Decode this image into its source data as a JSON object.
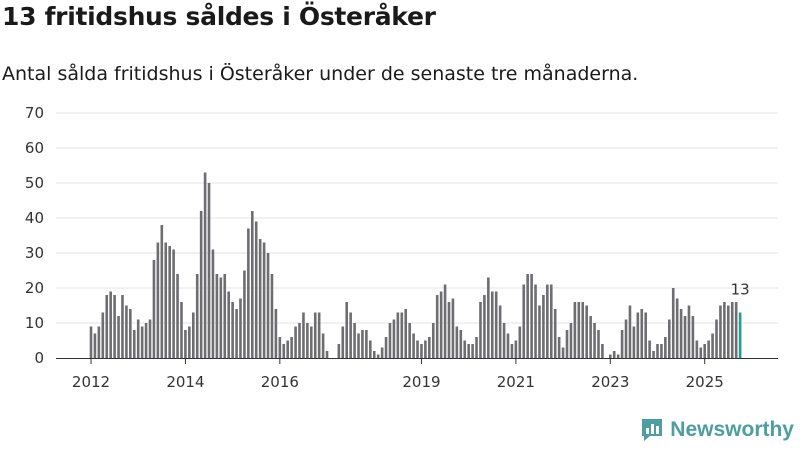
{
  "header": {
    "title": "13 fritidshus såldes i Österåker",
    "subtitle": "Antal sålda fritidshus i Österåker under de senaste tre månaderna."
  },
  "brand": {
    "name": "Newsworthy",
    "color": "#4e9da0"
  },
  "colors": {
    "bar": "#6d6d72",
    "highlight": "#1f9c94",
    "grid": "#e3e3e3",
    "axis": "#333333"
  },
  "chart_data": {
    "type": "bar",
    "title": "13 fritidshus såldes i Österåker",
    "subtitle": "Antal sålda fritidshus i Österåker under de senaste tre månaderna.",
    "xlabel": "",
    "ylabel": "",
    "ylim": [
      0,
      70
    ],
    "yticks": [
      0,
      10,
      20,
      30,
      40,
      50,
      60,
      70
    ],
    "grid": true,
    "start": "2012-03",
    "xticks": [
      {
        "label": "2012",
        "index": 0
      },
      {
        "label": "2014",
        "index": 24
      },
      {
        "label": "2016",
        "index": 48
      },
      {
        "label": "2019",
        "index": 84
      },
      {
        "label": "2021",
        "index": 108
      },
      {
        "label": "2023",
        "index": 132
      },
      {
        "label": "2025",
        "index": 156
      }
    ],
    "values": [
      9,
      7,
      9,
      13,
      18,
      19,
      18,
      12,
      18,
      15,
      14,
      8,
      11,
      9,
      10,
      11,
      28,
      33,
      38,
      33,
      32,
      31,
      24,
      16,
      8,
      9,
      13,
      24,
      42,
      53,
      50,
      31,
      24,
      23,
      24,
      19,
      16,
      14,
      17,
      25,
      37,
      42,
      39,
      34,
      33,
      30,
      24,
      14,
      6,
      4,
      5,
      6,
      9,
      10,
      13,
      10,
      9,
      13,
      13,
      7,
      2,
      null,
      null,
      4,
      9,
      16,
      13,
      10,
      7,
      8,
      8,
      5,
      2,
      1,
      3,
      6,
      10,
      11,
      13,
      13,
      14,
      10,
      7,
      5,
      4,
      5,
      6,
      10,
      18,
      19,
      21,
      16,
      17,
      9,
      8,
      5,
      4,
      4,
      6,
      16,
      18,
      23,
      19,
      19,
      15,
      10,
      7,
      4,
      5,
      9,
      21,
      24,
      24,
      21,
      15,
      18,
      21,
      21,
      14,
      6,
      3,
      8,
      10,
      16,
      16,
      16,
      15,
      12,
      10,
      8,
      4,
      0,
      1,
      2,
      1,
      8,
      11,
      15,
      9,
      13,
      14,
      13,
      5,
      2,
      4,
      4,
      6,
      11,
      20,
      17,
      14,
      12,
      15,
      12,
      5,
      3,
      4,
      5,
      7,
      11,
      15,
      16,
      15,
      16,
      16,
      13
    ],
    "highlight_index": 165,
    "annotations": [
      {
        "index": 165,
        "text": "13"
      }
    ]
  }
}
